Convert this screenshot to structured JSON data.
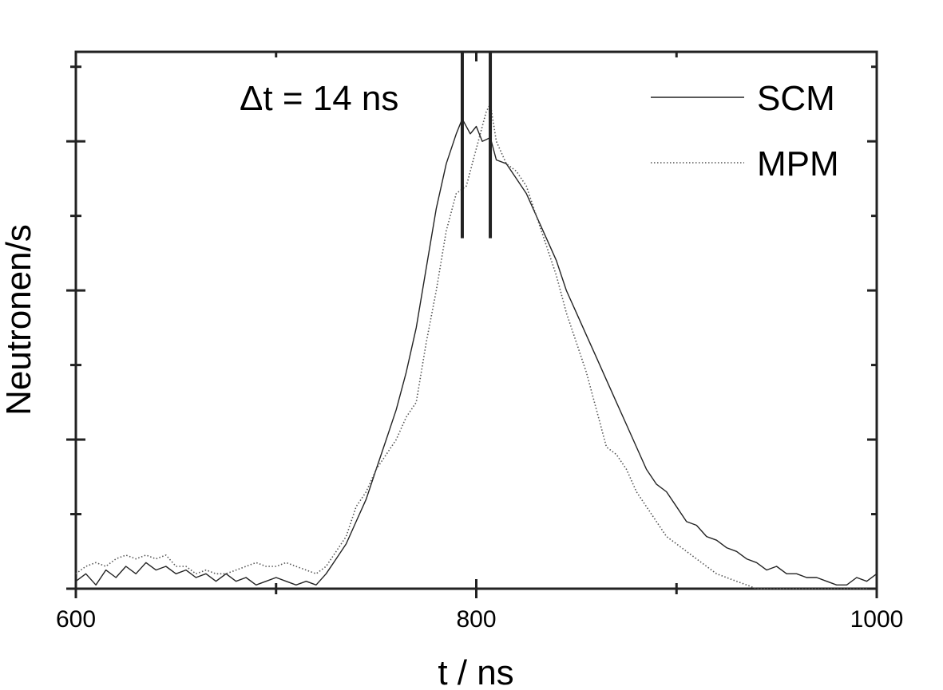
{
  "chart_data": {
    "type": "line",
    "title": "",
    "xlabel": "t / ns",
    "ylabel": "Neutronen/s",
    "xlim": [
      600,
      1000
    ],
    "ylim": [
      0,
      7.2
    ],
    "grid": false,
    "legend_position": "top-right",
    "x_ticks": [
      {
        "value": 600,
        "label": "600"
      },
      {
        "value": 800,
        "label": "800"
      },
      {
        "value": 1000,
        "label": "1000"
      }
    ],
    "x_minor_ticks": [
      700,
      900
    ],
    "y_ticks": [
      0,
      2,
      4,
      6
    ],
    "y_minor_ticks": [
      1,
      3,
      5,
      7
    ],
    "annotation": {
      "text": "Δt = 14 ns",
      "marker_positions": [
        793,
        807
      ],
      "marker_y_range": [
        4.7,
        7.2
      ]
    },
    "series": [
      {
        "name": "SCM",
        "style": "solid",
        "color": "#222222",
        "points": [
          [
            600,
            0.1
          ],
          [
            605,
            0.2
          ],
          [
            610,
            0.05
          ],
          [
            615,
            0.25
          ],
          [
            620,
            0.15
          ],
          [
            625,
            0.3
          ],
          [
            630,
            0.2
          ],
          [
            635,
            0.35
          ],
          [
            640,
            0.25
          ],
          [
            645,
            0.3
          ],
          [
            650,
            0.2
          ],
          [
            655,
            0.25
          ],
          [
            660,
            0.15
          ],
          [
            665,
            0.2
          ],
          [
            670,
            0.1
          ],
          [
            675,
            0.2
          ],
          [
            680,
            0.1
          ],
          [
            685,
            0.15
          ],
          [
            690,
            0.05
          ],
          [
            695,
            0.1
          ],
          [
            700,
            0.15
          ],
          [
            705,
            0.1
          ],
          [
            710,
            0.05
          ],
          [
            715,
            0.1
          ],
          [
            720,
            0.05
          ],
          [
            725,
            0.2
          ],
          [
            730,
            0.4
          ],
          [
            735,
            0.6
          ],
          [
            740,
            0.9
          ],
          [
            745,
            1.2
          ],
          [
            750,
            1.6
          ],
          [
            755,
            2.0
          ],
          [
            760,
            2.4
          ],
          [
            765,
            2.9
          ],
          [
            770,
            3.5
          ],
          [
            775,
            4.3
          ],
          [
            780,
            5.1
          ],
          [
            785,
            5.7
          ],
          [
            790,
            6.1
          ],
          [
            793,
            6.3
          ],
          [
            797,
            6.1
          ],
          [
            800,
            6.2
          ],
          [
            803,
            6.0
          ],
          [
            807,
            6.05
          ],
          [
            810,
            5.75
          ],
          [
            815,
            5.7
          ],
          [
            820,
            5.5
          ],
          [
            825,
            5.3
          ],
          [
            830,
            5.0
          ],
          [
            835,
            4.7
          ],
          [
            840,
            4.4
          ],
          [
            845,
            4.0
          ],
          [
            850,
            3.7
          ],
          [
            855,
            3.4
          ],
          [
            860,
            3.1
          ],
          [
            865,
            2.8
          ],
          [
            870,
            2.5
          ],
          [
            875,
            2.2
          ],
          [
            880,
            1.9
          ],
          [
            885,
            1.6
          ],
          [
            890,
            1.4
          ],
          [
            895,
            1.3
          ],
          [
            900,
            1.1
          ],
          [
            905,
            0.9
          ],
          [
            910,
            0.85
          ],
          [
            915,
            0.7
          ],
          [
            920,
            0.65
          ],
          [
            925,
            0.55
          ],
          [
            930,
            0.5
          ],
          [
            935,
            0.4
          ],
          [
            940,
            0.35
          ],
          [
            945,
            0.25
          ],
          [
            950,
            0.3
          ],
          [
            955,
            0.2
          ],
          [
            960,
            0.2
          ],
          [
            965,
            0.15
          ],
          [
            970,
            0.15
          ],
          [
            975,
            0.1
          ],
          [
            980,
            0.05
          ],
          [
            985,
            0.05
          ],
          [
            990,
            0.15
          ],
          [
            995,
            0.1
          ],
          [
            1000,
            0.2
          ]
        ]
      },
      {
        "name": "MPM",
        "style": "dotted",
        "color": "#555555",
        "points": [
          [
            600,
            0.2
          ],
          [
            605,
            0.3
          ],
          [
            610,
            0.35
          ],
          [
            615,
            0.3
          ],
          [
            620,
            0.4
          ],
          [
            625,
            0.45
          ],
          [
            630,
            0.4
          ],
          [
            635,
            0.45
          ],
          [
            640,
            0.4
          ],
          [
            645,
            0.45
          ],
          [
            650,
            0.3
          ],
          [
            655,
            0.3
          ],
          [
            660,
            0.2
          ],
          [
            665,
            0.25
          ],
          [
            670,
            0.2
          ],
          [
            675,
            0.2
          ],
          [
            680,
            0.25
          ],
          [
            685,
            0.3
          ],
          [
            690,
            0.35
          ],
          [
            695,
            0.3
          ],
          [
            700,
            0.3
          ],
          [
            705,
            0.35
          ],
          [
            710,
            0.3
          ],
          [
            715,
            0.25
          ],
          [
            720,
            0.2
          ],
          [
            725,
            0.3
          ],
          [
            730,
            0.5
          ],
          [
            735,
            0.7
          ],
          [
            740,
            1.1
          ],
          [
            745,
            1.3
          ],
          [
            750,
            1.6
          ],
          [
            755,
            1.8
          ],
          [
            760,
            2.0
          ],
          [
            765,
            2.3
          ],
          [
            770,
            2.5
          ],
          [
            775,
            3.3
          ],
          [
            780,
            4.0
          ],
          [
            785,
            4.8
          ],
          [
            790,
            5.3
          ],
          [
            795,
            5.4
          ],
          [
            800,
            5.9
          ],
          [
            805,
            6.4
          ],
          [
            807,
            6.5
          ],
          [
            810,
            6.0
          ],
          [
            815,
            5.7
          ],
          [
            820,
            5.6
          ],
          [
            825,
            5.4
          ],
          [
            830,
            5.0
          ],
          [
            835,
            4.6
          ],
          [
            840,
            4.2
          ],
          [
            845,
            3.7
          ],
          [
            850,
            3.3
          ],
          [
            855,
            2.9
          ],
          [
            860,
            2.4
          ],
          [
            865,
            1.9
          ],
          [
            870,
            1.8
          ],
          [
            875,
            1.6
          ],
          [
            880,
            1.3
          ],
          [
            885,
            1.1
          ],
          [
            890,
            0.9
          ],
          [
            895,
            0.7
          ],
          [
            900,
            0.6
          ],
          [
            905,
            0.5
          ],
          [
            910,
            0.4
          ],
          [
            915,
            0.3
          ],
          [
            920,
            0.2
          ],
          [
            925,
            0.15
          ],
          [
            930,
            0.1
          ],
          [
            935,
            0.05
          ],
          [
            940,
            0.0
          ],
          [
            950,
            0.0
          ],
          [
            960,
            0.0
          ],
          [
            970,
            0.0
          ],
          [
            980,
            0.0
          ],
          [
            990,
            0.0
          ],
          [
            1000,
            0.0
          ]
        ]
      }
    ]
  }
}
